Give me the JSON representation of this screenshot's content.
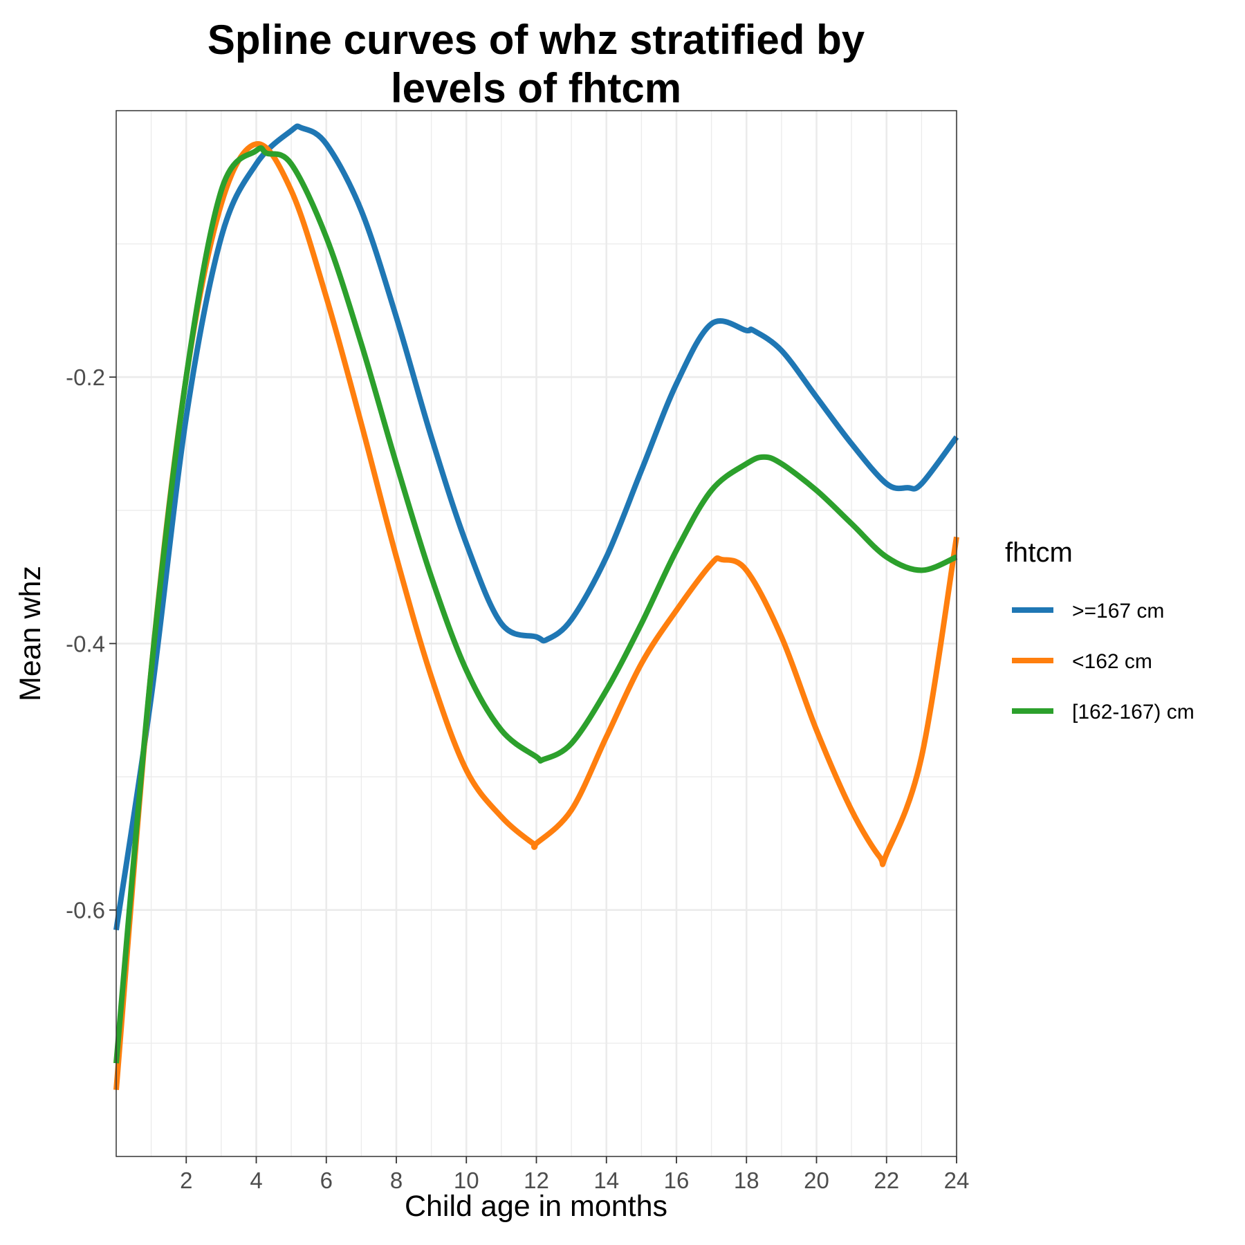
{
  "chart_data": {
    "type": "line",
    "title_lines": [
      "Spline curves of whz stratified by",
      "levels of fhtcm"
    ],
    "xlabel": "Child age in months",
    "ylabel": "Mean whz",
    "xlim": [
      0,
      24
    ],
    "ylim": [
      -0.785,
      0.0
    ],
    "x_ticks": [
      2,
      4,
      6,
      8,
      10,
      12,
      14,
      16,
      18,
      20,
      22,
      24
    ],
    "x_minor_ticks": [
      1,
      3,
      5,
      7,
      9,
      11,
      13,
      15,
      17,
      19,
      21,
      23
    ],
    "y_ticks": [
      -0.6,
      -0.4,
      -0.2
    ],
    "y_tick_labels": [
      "-0.6",
      "-0.4",
      "-0.2"
    ],
    "y_minor_ticks": [
      -0.7,
      -0.5,
      -0.3,
      -0.1
    ],
    "grid": true,
    "legend": {
      "title": "fhtcm",
      "position": "right"
    },
    "series": [
      {
        "name": ">=167 cm",
        "color": "#1f77b4",
        "points": [
          [
            0,
            -0.615
          ],
          [
            1,
            -0.44
          ],
          [
            2,
            -0.23
          ],
          [
            3,
            -0.095
          ],
          [
            4,
            -0.04
          ],
          [
            5,
            -0.015
          ],
          [
            5.3,
            -0.013
          ],
          [
            6,
            -0.025
          ],
          [
            7,
            -0.075
          ],
          [
            8,
            -0.155
          ],
          [
            9,
            -0.245
          ],
          [
            10,
            -0.325
          ],
          [
            11,
            -0.385
          ],
          [
            12,
            -0.395
          ],
          [
            12.3,
            -0.397
          ],
          [
            13,
            -0.382
          ],
          [
            14,
            -0.335
          ],
          [
            15,
            -0.27
          ],
          [
            16,
            -0.205
          ],
          [
            17,
            -0.16
          ],
          [
            18,
            -0.165
          ],
          [
            18.2,
            -0.165
          ],
          [
            19,
            -0.18
          ],
          [
            20,
            -0.215
          ],
          [
            21,
            -0.25
          ],
          [
            22,
            -0.28
          ],
          [
            22.6,
            -0.283
          ],
          [
            23,
            -0.28
          ],
          [
            24,
            -0.245
          ]
        ]
      },
      {
        "name": "<162 cm",
        "color": "#ff7f0e",
        "points": [
          [
            0,
            -0.735
          ],
          [
            1,
            -0.42
          ],
          [
            2,
            -0.2
          ],
          [
            3,
            -0.07
          ],
          [
            4,
            -0.025
          ],
          [
            5,
            -0.06
          ],
          [
            6,
            -0.14
          ],
          [
            7,
            -0.235
          ],
          [
            8,
            -0.335
          ],
          [
            9,
            -0.425
          ],
          [
            10,
            -0.495
          ],
          [
            11,
            -0.53
          ],
          [
            11.9,
            -0.55
          ],
          [
            12,
            -0.55
          ],
          [
            13,
            -0.525
          ],
          [
            14,
            -0.47
          ],
          [
            15,
            -0.415
          ],
          [
            16,
            -0.375
          ],
          [
            17,
            -0.34
          ],
          [
            17.3,
            -0.337
          ],
          [
            18,
            -0.345
          ],
          [
            19,
            -0.395
          ],
          [
            20,
            -0.465
          ],
          [
            21,
            -0.525
          ],
          [
            21.8,
            -0.56
          ],
          [
            22,
            -0.558
          ],
          [
            23,
            -0.485
          ],
          [
            24,
            -0.32
          ]
        ]
      },
      {
        "name": "[162-167) cm",
        "color": "#2ca02c",
        "points": [
          [
            0,
            -0.715
          ],
          [
            1,
            -0.42
          ],
          [
            2,
            -0.2
          ],
          [
            3,
            -0.06
          ],
          [
            4,
            -0.03
          ],
          [
            4.3,
            -0.032
          ],
          [
            5,
            -0.04
          ],
          [
            6,
            -0.095
          ],
          [
            7,
            -0.175
          ],
          [
            8,
            -0.265
          ],
          [
            9,
            -0.35
          ],
          [
            10,
            -0.42
          ],
          [
            11,
            -0.465
          ],
          [
            12,
            -0.485
          ],
          [
            12.2,
            -0.487
          ],
          [
            13,
            -0.475
          ],
          [
            14,
            -0.435
          ],
          [
            15,
            -0.385
          ],
          [
            16,
            -0.33
          ],
          [
            17,
            -0.285
          ],
          [
            18,
            -0.265
          ],
          [
            18.5,
            -0.26
          ],
          [
            19,
            -0.265
          ],
          [
            20,
            -0.285
          ],
          [
            21,
            -0.31
          ],
          [
            22,
            -0.335
          ],
          [
            23,
            -0.345
          ],
          [
            24,
            -0.335
          ]
        ]
      }
    ]
  }
}
